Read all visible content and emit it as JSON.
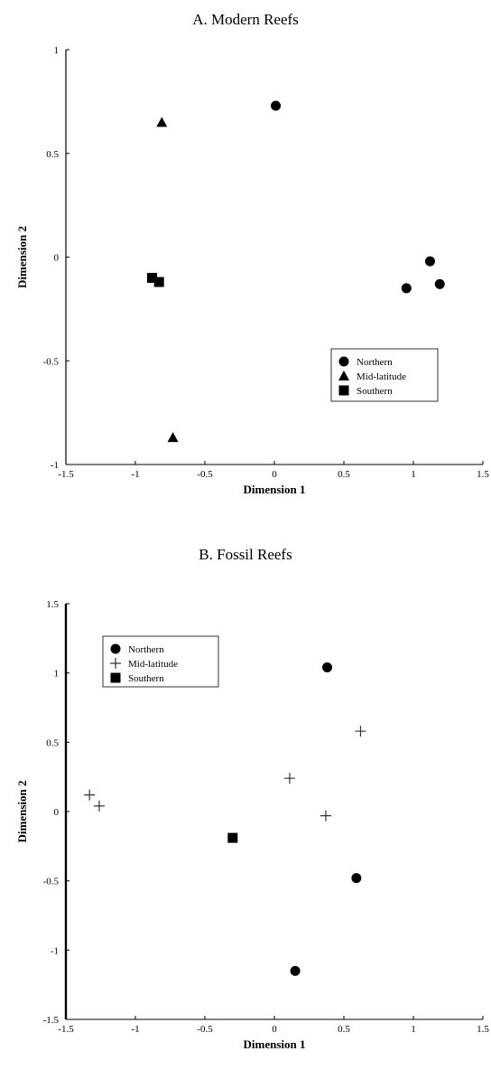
{
  "chart_data": [
    {
      "type": "scatter",
      "title": "A.  Modern Reefs",
      "xlabel": "Dimension 1",
      "ylabel": "Dimension 2",
      "xlim": [
        -1.5,
        1.5
      ],
      "ylim": [
        -1,
        1
      ],
      "xticks": [
        -1.5,
        -1,
        -0.5,
        0,
        0.5,
        1,
        1.5
      ],
      "yticks": [
        -1,
        -0.5,
        0,
        0.5,
        1
      ],
      "grid": false,
      "legend": "bottom-right",
      "series": [
        {
          "name": "Northern",
          "marker": "circle",
          "points": [
            [
              0.01,
              0.73
            ],
            [
              1.12,
              -0.02
            ],
            [
              0.95,
              -0.15
            ],
            [
              1.19,
              -0.13
            ]
          ]
        },
        {
          "name": "Mid-latitude",
          "marker": "triangle",
          "points": [
            [
              -0.81,
              0.65
            ],
            [
              -0.73,
              -0.87
            ]
          ]
        },
        {
          "name": "Southern",
          "marker": "square",
          "points": [
            [
              -0.88,
              -0.1
            ],
            [
              -0.83,
              -0.12
            ]
          ]
        }
      ]
    },
    {
      "type": "scatter",
      "title": "B.  Fossil Reefs",
      "xlabel": "Dimension 1",
      "ylabel": "Dimension 2",
      "xlim": [
        -1.5,
        1.5
      ],
      "ylim": [
        -1.5,
        1.5
      ],
      "xticks": [
        -1.5,
        -1,
        -0.5,
        0,
        0.5,
        1,
        1.5
      ],
      "yticks": [
        -1.5,
        -1,
        -0.5,
        0,
        0.5,
        1,
        1.5
      ],
      "grid": false,
      "legend": "top-left",
      "series": [
        {
          "name": "Northern",
          "marker": "circle",
          "points": [
            [
              0.38,
              1.04
            ],
            [
              0.59,
              -0.48
            ],
            [
              0.15,
              -1.15
            ]
          ]
        },
        {
          "name": "Mid-latitude",
          "marker": "plus",
          "points": [
            [
              -1.33,
              0.12
            ],
            [
              -1.26,
              0.04
            ],
            [
              0.11,
              0.24
            ],
            [
              0.62,
              0.58
            ],
            [
              0.37,
              -0.03
            ]
          ]
        },
        {
          "name": "Southern",
          "marker": "square",
          "points": [
            [
              -0.3,
              -0.19
            ]
          ]
        }
      ]
    }
  ]
}
